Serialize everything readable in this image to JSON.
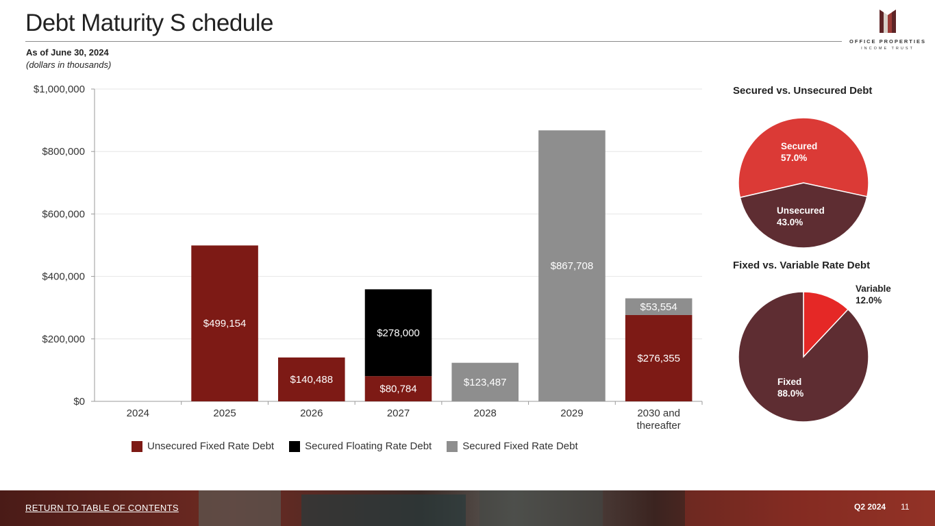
{
  "page": {
    "title": "Debt Maturity S chedule",
    "subtitle_date": "As of June 30, 2024",
    "subtitle_units": "(dollars in thousands)"
  },
  "logo": {
    "line1": "OFFICE PROPERTIES",
    "line2": "INCOME TRUST",
    "colors": {
      "dark": "#5e2426",
      "mid": "#9a3a36",
      "light": "#d8d0c8"
    }
  },
  "footer": {
    "link_label": "RETURN TO TABLE OF CONTENTS",
    "quarter": "Q2 2024",
    "page_number": "11"
  },
  "chart_data": [
    {
      "type": "bar",
      "stacked": true,
      "categories": [
        "2024",
        "2025",
        "2026",
        "2027",
        "2028",
        "2029",
        "2030 and\nthereafter"
      ],
      "series": [
        {
          "name": "Unsecured Fixed Rate Debt",
          "color": "#7d1a15",
          "values": [
            0,
            499154,
            140488,
            80784,
            0,
            0,
            276355
          ]
        },
        {
          "name": "Secured Floating Rate Debt",
          "color": "#000000",
          "values": [
            0,
            0,
            0,
            278000,
            0,
            0,
            0
          ]
        },
        {
          "name": "Secured Fixed Rate Debt",
          "color": "#8e8e8e",
          "values": [
            0,
            0,
            0,
            0,
            123487,
            867708,
            53554
          ]
        }
      ],
      "data_labels": [
        [
          "",
          "$499,154",
          "$140,488",
          "$80,784",
          "",
          "",
          "$276,355"
        ],
        [
          "",
          "",
          "",
          "$278,000",
          "",
          "",
          ""
        ],
        [
          "",
          "",
          "",
          "",
          "$123,487",
          "$867,708",
          "$53,554"
        ]
      ],
      "ylim": [
        0,
        1000000
      ],
      "y_ticks": [
        0,
        200000,
        400000,
        600000,
        800000,
        1000000
      ],
      "y_tick_labels": [
        "$0",
        "$200,000",
        "$400,000",
        "$600,000",
        "$800,000",
        "$1,000,000"
      ],
      "grid": true,
      "legend_position": "bottom"
    },
    {
      "type": "pie",
      "title": "Secured vs. Unsecured Debt",
      "slices": [
        {
          "label": "Secured",
          "value": 57.0,
          "display": "57.0%",
          "color": "#db3a36"
        },
        {
          "label": "Unsecured",
          "value": 43.0,
          "display": "43.0%",
          "color": "#5e2d32"
        }
      ]
    },
    {
      "type": "pie",
      "title": "Fixed vs. Variable Rate Debt",
      "slices": [
        {
          "label": "Variable",
          "value": 12.0,
          "display": "12.0%",
          "color": "#e52826"
        },
        {
          "label": "Fixed",
          "value": 88.0,
          "display": "88.0%",
          "color": "#5e2d32"
        }
      ]
    }
  ]
}
